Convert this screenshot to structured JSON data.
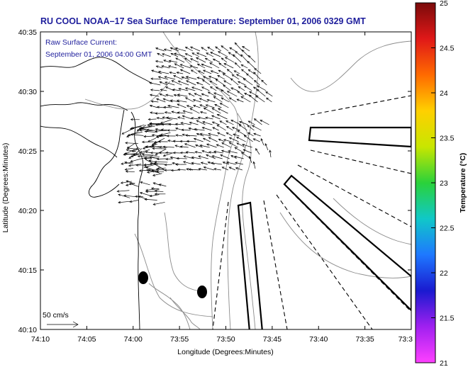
{
  "title": "RU COOL  NOAA–17  Sea Surface Temperature:  September 01, 2006 0329 GMT",
  "current_note": {
    "line1": "Raw Surface Current:",
    "line2": "September 01, 2006 04:00 GMT"
  },
  "axes": {
    "xlabel": "Longitude (Degrees:Minutes)",
    "ylabel": "Latitude (Degrees:Minutes)",
    "x_ticks": [
      "74:10",
      "74:05",
      "74:00",
      "73:55",
      "73:50",
      "73:45",
      "73:40",
      "73:35",
      "73:3"
    ],
    "y_ticks": [
      "40:35",
      "40:30",
      "40:25",
      "40:20",
      "40:15",
      "40:10"
    ]
  },
  "scale_label": "50 cm/s",
  "colorbar": {
    "label": "Temperature (°C)",
    "ticks": [
      "25",
      "24.5",
      "24",
      "23.5",
      "23",
      "22.5",
      "22",
      "21.5",
      "21"
    ],
    "colors": [
      "#7a0a0a",
      "#e01818",
      "#ff6a00",
      "#ffd000",
      "#c8e600",
      "#2ad23a",
      "#10c8c8",
      "#1e78ff",
      "#1a1ad0",
      "#a020f0",
      "#ff40ff"
    ]
  },
  "map": {
    "lon_range": [
      "74:10",
      "73:30"
    ],
    "lat_range": [
      "40:10",
      "40:35"
    ],
    "features": [
      "coastline",
      "bathymetry-contours",
      "surface-current-vectors",
      "dredge-disposal-zones",
      "channel-lines",
      "buoy-markers"
    ]
  }
}
